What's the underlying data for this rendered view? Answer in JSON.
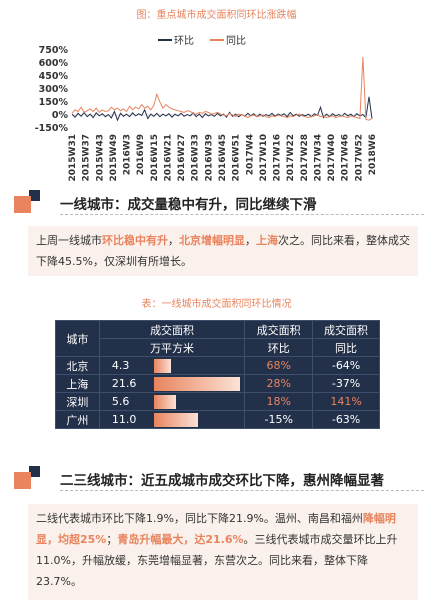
{
  "caption1": "图：重点城市成交面积同环比涨跌幅",
  "chart_data": {
    "type": "line",
    "title": "",
    "legend": [
      "环比",
      "同比"
    ],
    "series_colors": [
      "#23304a",
      "#e8845e"
    ],
    "y_ticks": [
      "750%",
      "600%",
      "450%",
      "300%",
      "150%",
      "0%",
      "-150%"
    ],
    "ylim": [
      -150,
      750
    ],
    "x_tick_labels": [
      "2015W31",
      "2015W37",
      "2015W43",
      "2015W49",
      "2016W3",
      "2016W9",
      "2016W15",
      "2016W21",
      "2016W27",
      "2016W33",
      "2016W39",
      "2016W45",
      "2016W51",
      "2017W4",
      "2017W10",
      "2017W16",
      "2017W22",
      "2017W28",
      "2017W34",
      "2017W40",
      "2017W46",
      "2017W52",
      "2018W6"
    ],
    "series": [
      {
        "name": "环比",
        "values": [
          10,
          -25,
          20,
          -15,
          30,
          -20,
          10,
          -30,
          25,
          -10,
          15,
          -20,
          5,
          -35,
          40,
          -60,
          20,
          -15,
          10,
          -20,
          25,
          -10,
          15,
          -5,
          60,
          -40,
          10,
          -15,
          20,
          -20,
          10,
          -10,
          15,
          -25,
          10,
          -10,
          20,
          -15,
          5,
          -10,
          25,
          -20,
          10,
          -30,
          15,
          -10,
          5,
          -15,
          20,
          -10,
          10,
          -25,
          30,
          -15,
          10,
          -20,
          5,
          -15,
          20,
          -10,
          15,
          -20,
          10,
          -15,
          5,
          -10,
          20,
          -15,
          10,
          -5,
          15,
          -20,
          30,
          -10,
          10,
          -15,
          5,
          -10,
          10,
          -20,
          15,
          -5,
          90,
          -30,
          10,
          -20,
          15,
          -10,
          5,
          -15,
          20,
          -10,
          10,
          -20,
          15,
          -10,
          5,
          -30,
          210,
          -40
        ]
      },
      {
        "name": "同比",
        "values": [
          20,
          60,
          40,
          90,
          30,
          50,
          70,
          40,
          80,
          30,
          60,
          40,
          50,
          90,
          60,
          80,
          50,
          70,
          40,
          100,
          60,
          90,
          70,
          120,
          80,
          100,
          60,
          110,
          240,
          150,
          80,
          120,
          90,
          70,
          60,
          50,
          40,
          30,
          50,
          40,
          20,
          10,
          30,
          20,
          40,
          30,
          10,
          20,
          30,
          10,
          0,
          -10,
          20,
          0,
          -20,
          10,
          0,
          -10,
          -30,
          -10,
          0,
          -20,
          -10,
          0,
          -20,
          -30,
          -10,
          -20,
          0,
          -10,
          -20,
          -30,
          -10,
          -20,
          0,
          10,
          -10,
          -20,
          -30,
          -20,
          -10,
          0,
          -20,
          -10,
          -30,
          -20,
          -10,
          -30,
          -20,
          -10,
          -20,
          -30,
          -10,
          -20,
          -30,
          -40,
          670,
          -50,
          -60,
          -40
        ]
      }
    ]
  },
  "section1": {
    "title": "一线城市：成交量稳中有升，同比继续下滑"
  },
  "text1": {
    "a": "上周一线城市",
    "b": "环比稳中有升",
    "c": "，",
    "d": "北京增幅明显",
    "e": "，",
    "f": "上海",
    "g": "次之。同比来看，",
    "h": "整体成交下降45.5%，仅深圳有所增长。"
  },
  "caption2": "表：一线城市成交面积同环比情况",
  "table": {
    "h_city": "城市",
    "h_area": "成交面积",
    "h_area_unit": "万平方米",
    "h_mom": "成交面积",
    "h_mom_sub": "环比",
    "h_yoy": "成交面积",
    "h_yoy_sub": "同比",
    "rows": [
      {
        "city": "北京",
        "area": "4.3",
        "area_value": 4.3,
        "mom": "68%",
        "yoy": "-64%"
      },
      {
        "city": "上海",
        "area": "21.6",
        "area_value": 21.6,
        "mom": "28%",
        "yoy": "-37%"
      },
      {
        "city": "深圳",
        "area": "5.6",
        "area_value": 5.6,
        "mom": "18%",
        "yoy": "141%"
      },
      {
        "city": "广州",
        "area": "11.0",
        "area_value": 11.0,
        "mom": "-15%",
        "yoy": "-63%"
      }
    ]
  },
  "section2": {
    "title": "二三线城市：近五成城市成交环比下降，惠州降幅显著"
  },
  "text2": {
    "a": "二线代表城市环比下降1.9%，同比下降21.9%。温州、南昌和福州",
    "b": "降幅明显，均超25%",
    "c": "；",
    "d": "青岛升幅最大，达21.6%",
    "e": "。三线代表城市成交量环比上升11.0%，升幅放缓，东莞增幅显著，东营次之。同比来看，整体下降23.7%。"
  }
}
